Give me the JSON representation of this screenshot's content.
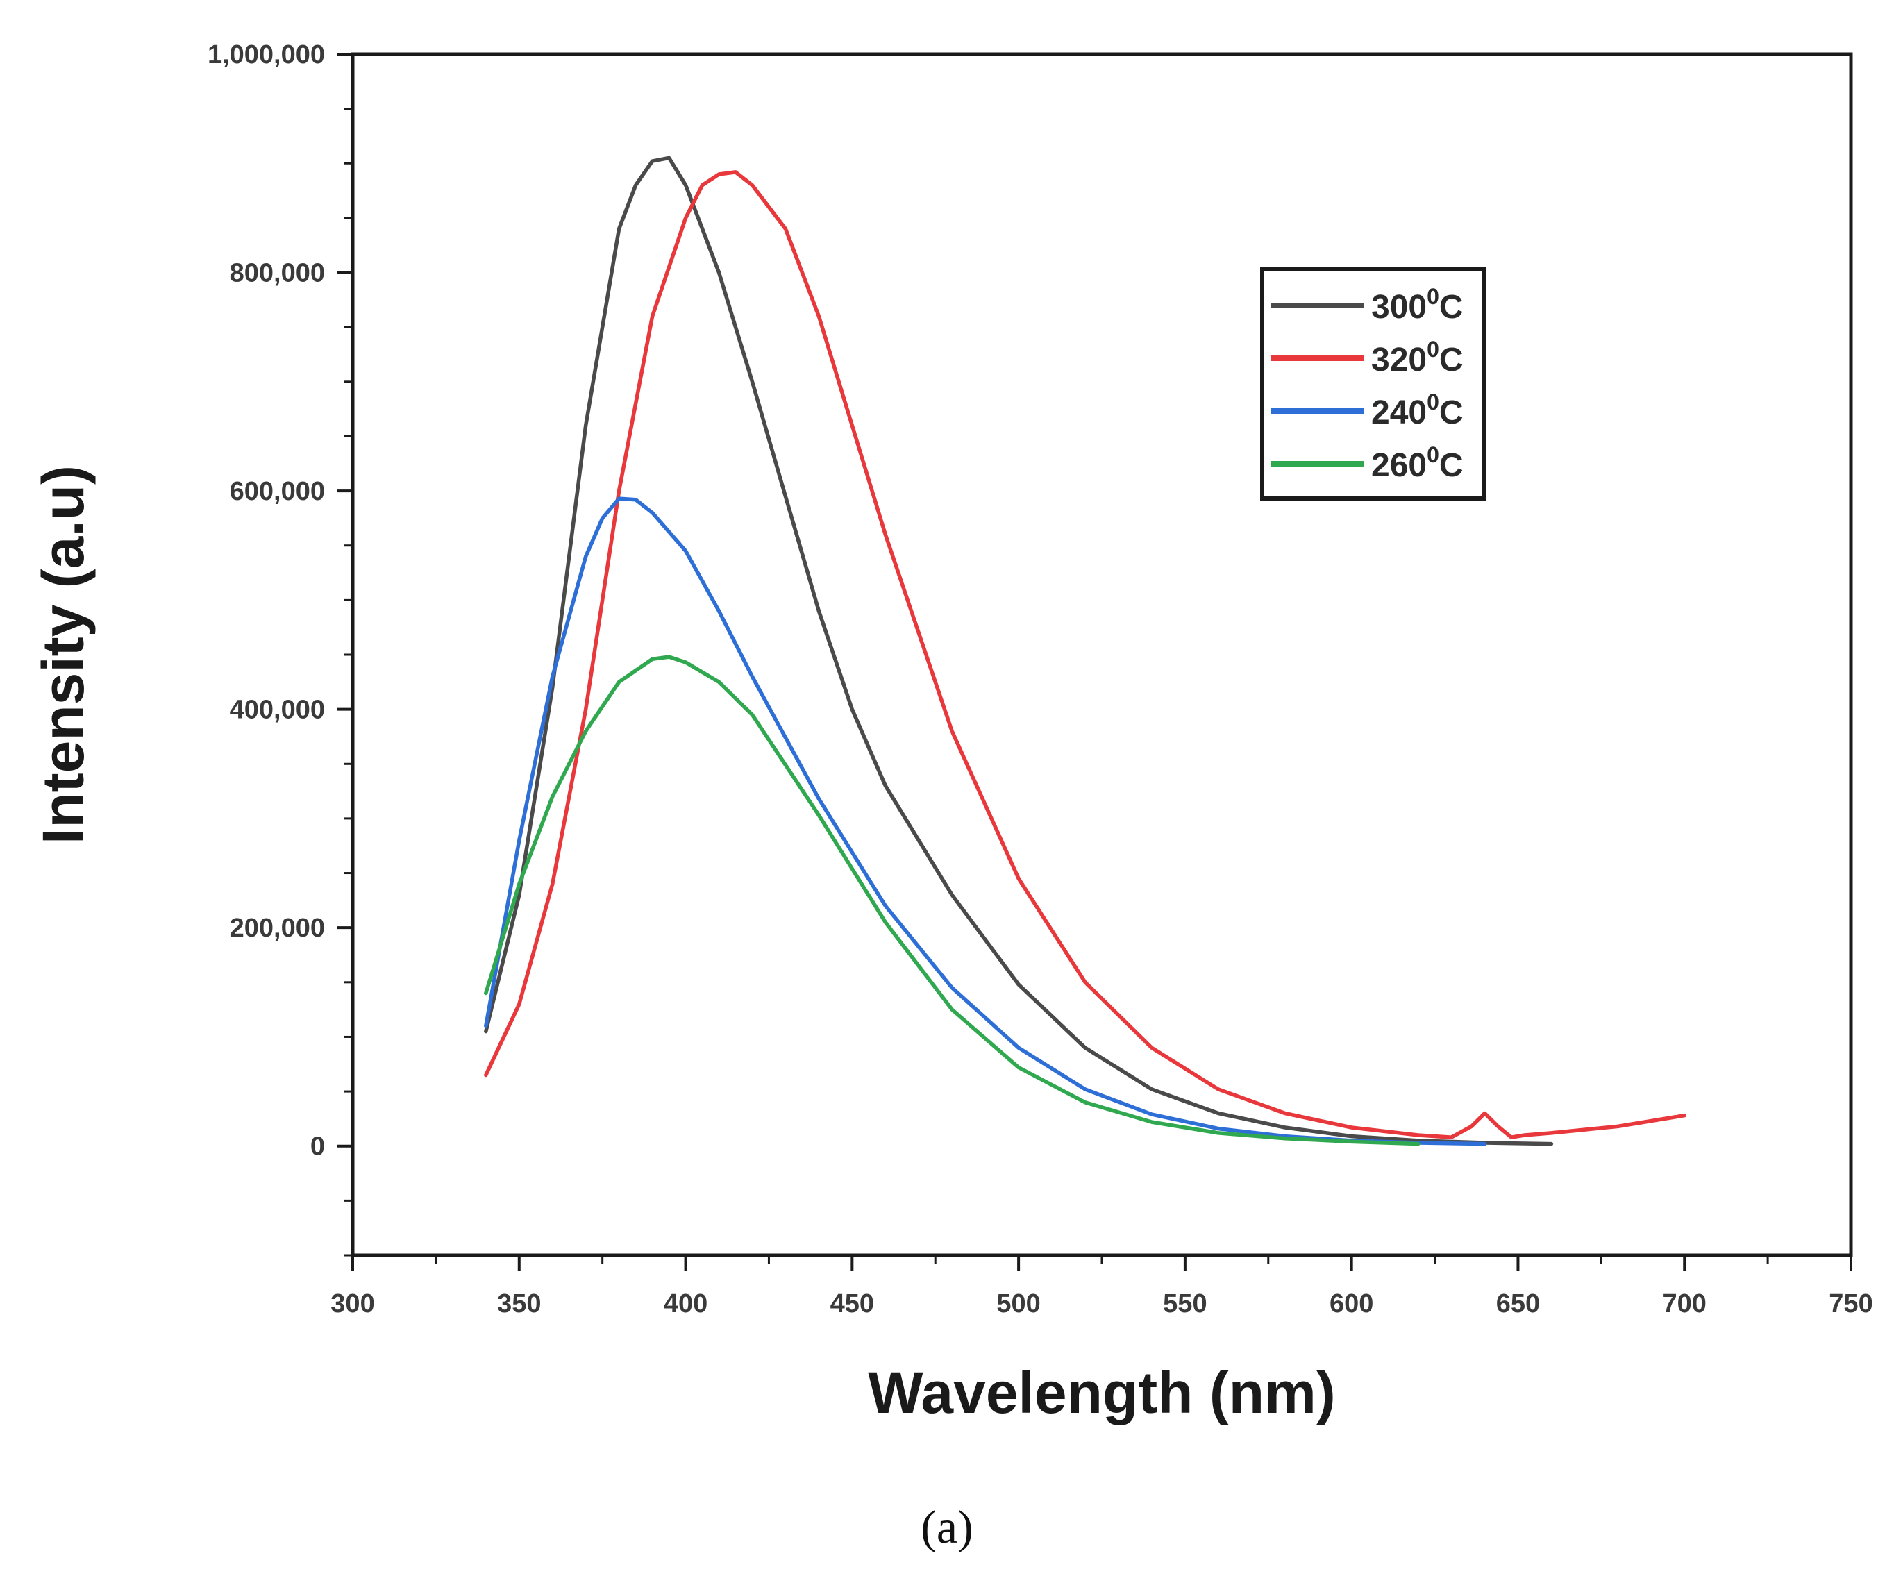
{
  "chart_data": {
    "type": "line",
    "title": "",
    "xlabel": "Wavelength (nm)",
    "ylabel": "Intensity (a.u)",
    "xlim": [
      300,
      750
    ],
    "ylim": [
      -100000,
      1000000
    ],
    "x_ticks": [
      300,
      350,
      400,
      450,
      500,
      550,
      600,
      650,
      700,
      750
    ],
    "x_tick_labels": [
      "300",
      "350",
      "400",
      "450",
      "500",
      "550",
      "600",
      "650",
      "700",
      "750"
    ],
    "y_ticks": [
      0,
      200000,
      400000,
      600000,
      800000,
      1000000
    ],
    "y_tick_labels": [
      "0",
      "200,000",
      "400,000",
      "600,000",
      "800,000",
      "1,000,000"
    ],
    "grid": false,
    "legend_position": "top-right",
    "caption": "(a)",
    "series": [
      {
        "name": "300",
        "superscript": "0",
        "unit": "C",
        "color": "#4a4a4a",
        "x": [
          340,
          350,
          360,
          370,
          380,
          385,
          390,
          395,
          400,
          410,
          420,
          430,
          440,
          450,
          460,
          480,
          500,
          520,
          540,
          560,
          580,
          600,
          620,
          640,
          660
        ],
        "y": [
          105000,
          230000,
          420000,
          660000,
          840000,
          880000,
          902000,
          905000,
          880000,
          800000,
          700000,
          595000,
          490000,
          400000,
          330000,
          230000,
          148000,
          90000,
          52000,
          30000,
          17000,
          9000,
          5000,
          3000,
          2000
        ]
      },
      {
        "name": "320",
        "superscript": "0",
        "unit": "C",
        "color": "#e8383c",
        "x": [
          340,
          350,
          360,
          370,
          380,
          390,
          400,
          405,
          410,
          415,
          420,
          430,
          440,
          450,
          460,
          480,
          500,
          520,
          540,
          560,
          580,
          600,
          620,
          630,
          636,
          640,
          644,
          648,
          652,
          660,
          680,
          700
        ],
        "y": [
          65000,
          130000,
          240000,
          400000,
          600000,
          760000,
          850000,
          880000,
          890000,
          892000,
          880000,
          840000,
          760000,
          660000,
          560000,
          380000,
          245000,
          150000,
          90000,
          52000,
          30000,
          17000,
          10000,
          8000,
          18000,
          30000,
          18000,
          8000,
          10000,
          12000,
          18000,
          28000
        ]
      },
      {
        "name": "240",
        "superscript": "0",
        "unit": "C",
        "color": "#2d6fd6",
        "x": [
          340,
          350,
          360,
          370,
          375,
          380,
          385,
          390,
          400,
          410,
          420,
          440,
          460,
          480,
          500,
          520,
          540,
          560,
          580,
          600,
          620,
          640
        ],
        "y": [
          110000,
          280000,
          430000,
          540000,
          575000,
          593000,
          592000,
          580000,
          545000,
          490000,
          430000,
          318000,
          220000,
          145000,
          90000,
          52000,
          29000,
          16000,
          9000,
          5000,
          3000,
          2000
        ]
      },
      {
        "name": "260",
        "superscript": "0",
        "unit": "C",
        "color": "#2fa84f",
        "x": [
          340,
          350,
          360,
          370,
          380,
          390,
          395,
          400,
          410,
          420,
          440,
          460,
          480,
          500,
          520,
          540,
          560,
          580,
          600,
          620
        ],
        "y": [
          140000,
          240000,
          320000,
          380000,
          425000,
          446000,
          448000,
          443000,
          425000,
          395000,
          303000,
          205000,
          125000,
          72000,
          40000,
          22000,
          12000,
          7000,
          4000,
          2000
        ]
      }
    ]
  }
}
